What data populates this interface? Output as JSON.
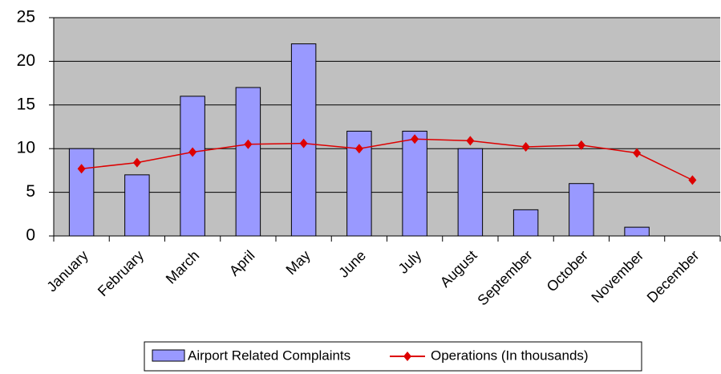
{
  "chart_data": {
    "type": "bar",
    "categories": [
      "January",
      "February",
      "March",
      "April",
      "May",
      "June",
      "July",
      "August",
      "September",
      "October",
      "November",
      "December"
    ],
    "series": [
      {
        "name": "Airport Related Complaints",
        "type": "bar",
        "color": "#9999ff",
        "values": [
          10,
          7,
          16,
          17,
          22,
          12,
          12,
          10,
          3,
          6,
          1,
          0
        ]
      },
      {
        "name": "Operations (In thousands)",
        "type": "line",
        "color": "#dd0000",
        "values": [
          7.7,
          8.4,
          9.6,
          10.5,
          10.6,
          10.0,
          11.1,
          10.9,
          10.2,
          10.4,
          9.5,
          6.4
        ]
      }
    ],
    "ylim": [
      0,
      25
    ],
    "yticks": [
      0,
      5,
      10,
      15,
      20,
      25
    ],
    "grid": true,
    "legend": "bottom"
  }
}
